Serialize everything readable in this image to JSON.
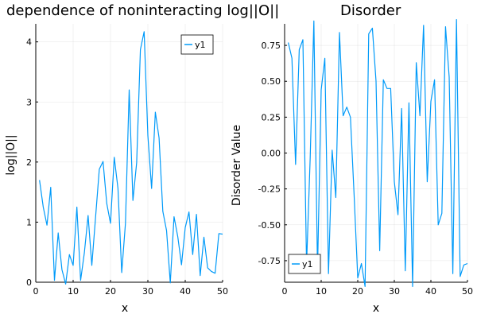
{
  "chart_data": [
    {
      "type": "line",
      "title": "dependence of noninteracting log||O||",
      "xlabel": "x",
      "ylabel": "log||O||",
      "xlim": [
        0,
        50
      ],
      "ylim": [
        0,
        4.3
      ],
      "x_ticks": [
        0,
        10,
        20,
        30,
        40,
        50
      ],
      "y_ticks": [
        0,
        1,
        2,
        3,
        4
      ],
      "grid": true,
      "legend_position": "top-right",
      "color": "#009af9",
      "series": [
        {
          "name": "y1",
          "x": [
            1,
            2,
            3,
            4,
            5,
            6,
            7,
            8,
            9,
            10,
            11,
            12,
            13,
            14,
            15,
            16,
            17,
            18,
            19,
            20,
            21,
            22,
            23,
            24,
            25,
            26,
            27,
            28,
            29,
            30,
            31,
            32,
            33,
            34,
            35,
            36,
            37,
            38,
            39,
            40,
            41,
            42,
            43,
            44,
            45,
            46,
            47,
            48,
            49,
            50
          ],
          "y": [
            1.7,
            1.25,
            0.95,
            1.58,
            0.03,
            0.82,
            0.21,
            -0.03,
            0.46,
            0.28,
            1.25,
            0.03,
            0.49,
            1.11,
            0.28,
            1.08,
            1.88,
            2.01,
            1.31,
            0.98,
            2.08,
            1.56,
            0.16,
            0.98,
            3.2,
            1.36,
            1.99,
            3.87,
            4.17,
            2.44,
            1.56,
            2.83,
            2.4,
            1.18,
            0.86,
            -0.01,
            1.09,
            0.76,
            0.29,
            0.91,
            1.17,
            0.46,
            1.13,
            0.11,
            0.75,
            0.24,
            0.18,
            0.15,
            0.81,
            0.8
          ]
        }
      ]
    },
    {
      "type": "line",
      "title": "Disorder",
      "xlabel": "x",
      "ylabel": "Disorder Value",
      "xlim": [
        0,
        50
      ],
      "ylim": [
        -0.9,
        0.9
      ],
      "x_ticks": [
        0,
        10,
        20,
        30,
        40,
        50
      ],
      "y_ticks": [
        -0.75,
        -0.5,
        -0.25,
        0.0,
        0.25,
        0.5,
        0.75
      ],
      "y_tick_labels": [
        "-0.75",
        "-0.50",
        "-0.25",
        "0.00",
        "0.25",
        "0.50",
        "0.75"
      ],
      "grid": true,
      "legend_position": "bottom-left",
      "color": "#009af9",
      "series": [
        {
          "name": "y1",
          "x": [
            1,
            2,
            3,
            4,
            5,
            6,
            7,
            8,
            9,
            10,
            11,
            12,
            13,
            14,
            15,
            16,
            17,
            18,
            19,
            20,
            21,
            22,
            23,
            24,
            25,
            26,
            27,
            28,
            29,
            30,
            31,
            32,
            33,
            34,
            35,
            36,
            37,
            38,
            39,
            40,
            41,
            42,
            43,
            44,
            45,
            46,
            47,
            48,
            49,
            50
          ],
          "y": [
            0.77,
            0.66,
            -0.08,
            0.72,
            0.79,
            -0.78,
            -0.03,
            0.92,
            -0.82,
            0.44,
            0.66,
            -0.84,
            0.02,
            -0.31,
            0.84,
            0.26,
            0.32,
            0.25,
            -0.29,
            -0.87,
            -0.77,
            -0.93,
            0.83,
            0.87,
            0.5,
            -0.68,
            0.51,
            0.45,
            0.45,
            -0.2,
            -0.43,
            0.31,
            -0.82,
            0.35,
            -0.93,
            0.63,
            0.26,
            0.89,
            -0.2,
            0.36,
            0.51,
            -0.5,
            -0.42,
            0.88,
            0.53,
            -0.84,
            0.93,
            -0.86,
            -0.78,
            -0.77
          ]
        }
      ]
    }
  ]
}
